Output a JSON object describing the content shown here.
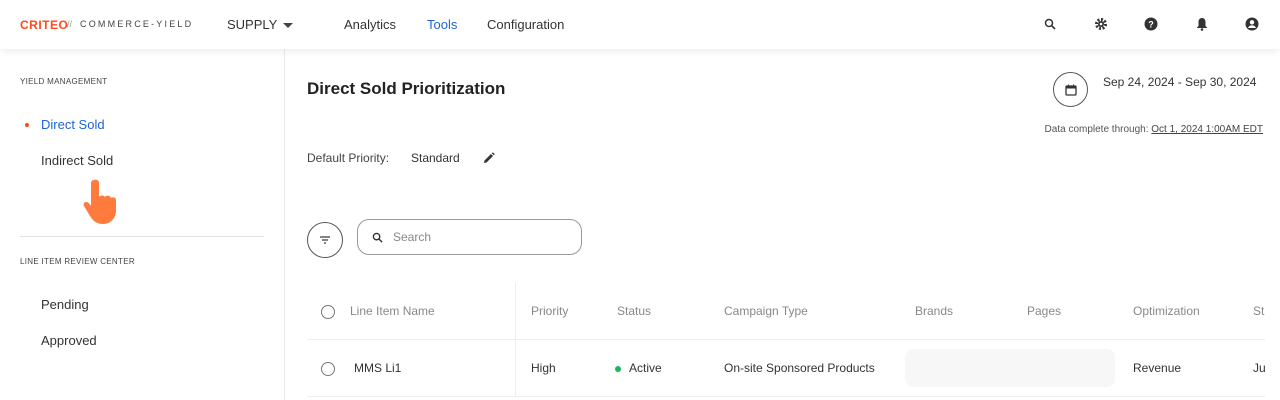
{
  "header": {
    "logo": "CRITEO",
    "logo_sep": "//",
    "logo_sub": "COMMERCE-YIELD",
    "product_switcher": "SUPPLY",
    "nav": [
      {
        "label": "Analytics"
      },
      {
        "label": "Tools",
        "active": true
      },
      {
        "label": "Configuration"
      }
    ],
    "icons": [
      "search-icon",
      "gear-icon",
      "help-icon",
      "bell-icon",
      "account-icon"
    ]
  },
  "sidebar": {
    "sections": [
      {
        "title": "YIELD MANAGEMENT",
        "items": [
          {
            "label": "Direct Sold",
            "active": true
          },
          {
            "label": "Indirect Sold"
          }
        ]
      },
      {
        "title": "LINE ITEM REVIEW CENTER",
        "items": [
          {
            "label": "Pending"
          },
          {
            "label": "Approved"
          }
        ]
      }
    ]
  },
  "main": {
    "title": "Direct Sold Prioritization",
    "date_range": "Sep 24, 2024 - Sep 30, 2024",
    "data_complete_label": "Data complete through:",
    "data_complete_value": "Oct 1, 2024 1:00AM EDT",
    "default_priority_label": "Default Priority:",
    "default_priority_value": "Standard",
    "search_placeholder": "Search",
    "table": {
      "columns": [
        "Line Item Name",
        "Priority",
        "Status",
        "Campaign Type",
        "Brands",
        "Pages",
        "Optimization",
        "St"
      ],
      "rows": [
        {
          "name": "MMS Li1",
          "priority": "High",
          "status": "Active",
          "campaign_type": "On-site Sponsored Products",
          "brands": "",
          "pages": "",
          "optimization": "Revenue",
          "start": "Ju"
        }
      ]
    }
  },
  "colors": {
    "accent": "#1f64d6",
    "brand": "#ff4a1c",
    "active_status": "#1bb55c"
  }
}
